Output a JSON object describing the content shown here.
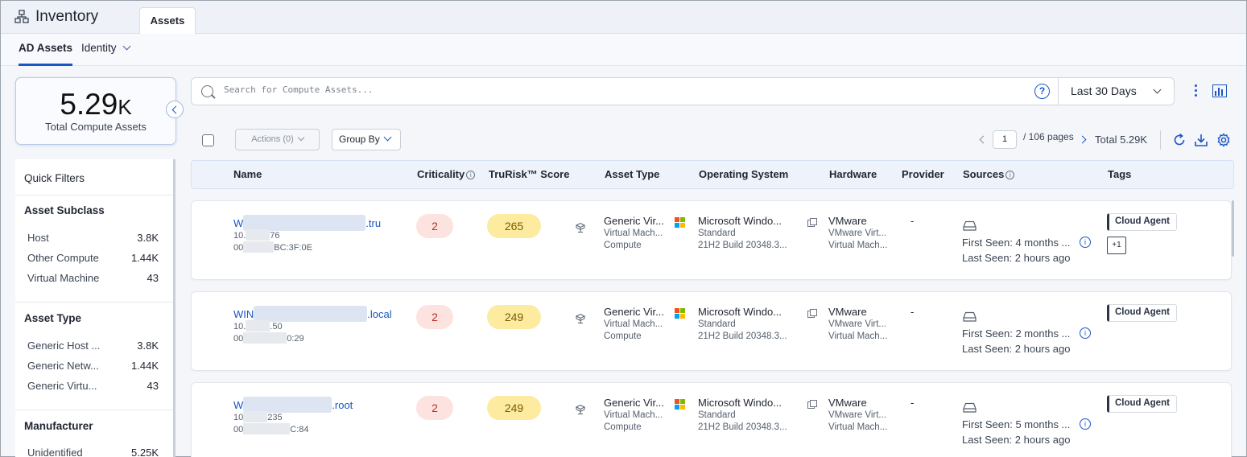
{
  "app": {
    "title": "Inventory",
    "tab": "Assets"
  },
  "subnav": {
    "tabs": [
      {
        "label": "AD Assets",
        "active": true
      },
      {
        "label": "Identity",
        "active": false
      }
    ]
  },
  "summary": {
    "value": "5.29",
    "unit": "K",
    "label": "Total Compute Assets"
  },
  "filters": {
    "title": "Quick Filters",
    "groups": [
      {
        "heading": "Asset Subclass",
        "items": [
          {
            "label": "Host",
            "count": "3.8K"
          },
          {
            "label": "Other Compute",
            "count": "1.44K"
          },
          {
            "label": "Virtual Machine",
            "count": "43"
          }
        ]
      },
      {
        "heading": "Asset Type",
        "items": [
          {
            "label": "Generic Host ...",
            "count": "3.8K"
          },
          {
            "label": "Generic Netw...",
            "count": "1.44K"
          },
          {
            "label": "Generic Virtu...",
            "count": "43"
          }
        ]
      },
      {
        "heading": "Manufacturer",
        "items": [
          {
            "label": "Unidentified",
            "count": "5.25K"
          }
        ]
      }
    ]
  },
  "search": {
    "placeholder": "Search for Compute Assets...",
    "help": "?",
    "date_range": "Last 30 Days"
  },
  "toolbar": {
    "actions": "Actions (0)",
    "group_by": "Group By",
    "page": "1",
    "pages": "/ 106 pages",
    "total": "Total 5.29K"
  },
  "columns": [
    "Name",
    "Criticality",
    "TruRisk™ Score",
    "Asset Type",
    "Operating System",
    "Hardware",
    "Provider",
    "Sources",
    "Tags"
  ],
  "rows": [
    {
      "name_prefix": "W",
      "name_suffix": ".tru",
      "ip_prefix": "10.",
      "ip_suffix": "76",
      "mac_prefix": "00",
      "mac_suffix": "BC:3F:0E",
      "criticality": "2",
      "score": "265",
      "asset_type": "Generic Vir...",
      "asset_sub1": "Virtual Mach...",
      "asset_sub2": "Compute",
      "os": "Microsoft Windo...",
      "os_sub1": "Standard",
      "os_sub2": "21H2 Build 20348.3...",
      "hw": "VMware",
      "hw_sub1": "VMware Virt...",
      "hw_sub2": "Virtual Mach...",
      "provider": "-",
      "first_seen": "First Seen: 4 months ...",
      "last_seen": "Last Seen: 2 hours ago",
      "tag": "Cloud Agent",
      "tag_more": "+1"
    },
    {
      "name_prefix": "WIN",
      "name_suffix": ".local",
      "ip_prefix": "10.",
      "ip_suffix": ".50",
      "mac_prefix": "00",
      "mac_suffix": "0:29",
      "criticality": "2",
      "score": "249",
      "asset_type": "Generic Vir...",
      "asset_sub1": "Virtual Mach...",
      "asset_sub2": "Compute",
      "os": "Microsoft Windo...",
      "os_sub1": "Standard",
      "os_sub2": "21H2 Build 20348.3...",
      "hw": "VMware",
      "hw_sub1": "VMware Virt...",
      "hw_sub2": "Virtual Mach...",
      "provider": "-",
      "first_seen": "First Seen: 2 months ...",
      "last_seen": "Last Seen: 2 hours ago",
      "tag": "Cloud Agent",
      "tag_more": ""
    },
    {
      "name_prefix": "W",
      "name_suffix": ".root",
      "ip_prefix": "10",
      "ip_suffix": "235",
      "mac_prefix": "00",
      "mac_suffix": "C:84",
      "criticality": "2",
      "score": "249",
      "asset_type": "Generic Vir...",
      "asset_sub1": "Virtual Mach...",
      "asset_sub2": "Compute",
      "os": "Microsoft Windo...",
      "os_sub1": "Standard",
      "os_sub2": "21H2 Build 20348.3...",
      "hw": "VMware",
      "hw_sub1": "VMware Virt...",
      "hw_sub2": "Virtual Mach...",
      "provider": "-",
      "first_seen": "First Seen: 5 months ...",
      "last_seen": "Last Seen: 2 hours ago",
      "tag": "Cloud Agent",
      "tag_more": ""
    }
  ],
  "icons": {
    "app": "inventory-icon",
    "search": "search-icon",
    "help": "help-icon",
    "refresh": "refresh-icon",
    "download": "download-icon",
    "settings": "gear-icon",
    "chart": "chart-icon",
    "more": "kebab-icon",
    "sources": "disk-icon",
    "os": "windows-logo-icon",
    "asset": "asset-type-icon",
    "hw": "hardware-icon"
  },
  "colors": {
    "accent": "#1a56c4",
    "critical_bg": "#fde3df",
    "score_bg": "#fdeba0"
  }
}
